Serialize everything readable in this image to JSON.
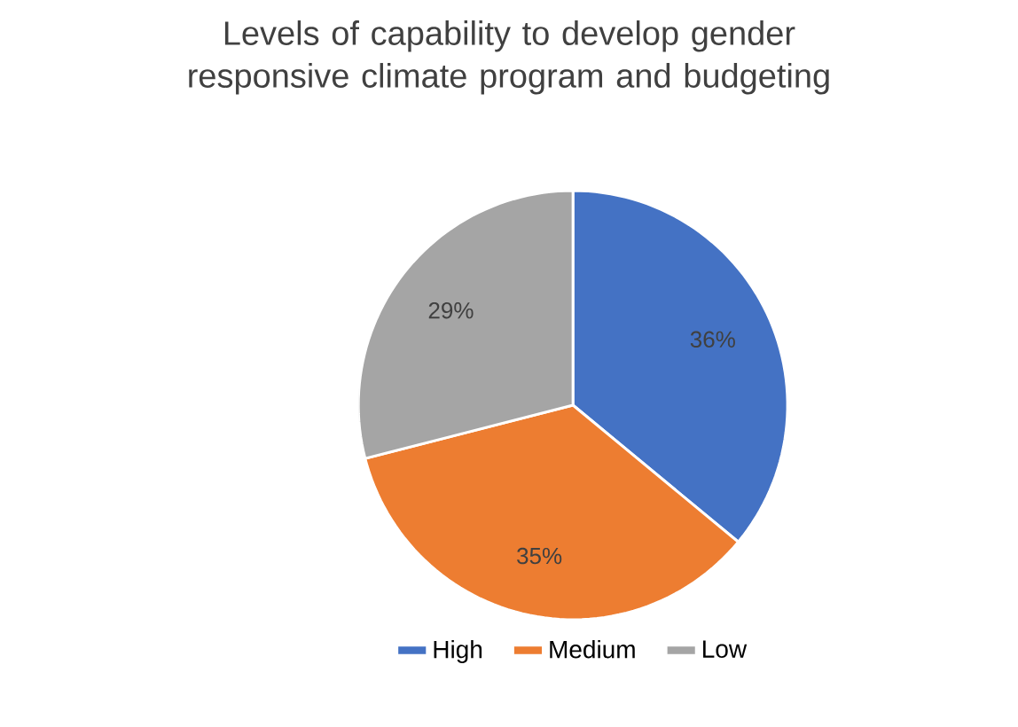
{
  "chart_data": {
    "type": "pie",
    "title": "Levels of capability to develop gender responsive climate program and budgeting",
    "categories": [
      "High",
      "Medium",
      "Low"
    ],
    "values": [
      36,
      35,
      29
    ],
    "value_labels": [
      "36%",
      "35%",
      "29%"
    ],
    "colors": [
      "#4472c4",
      "#ed7d31",
      "#a5a5a5"
    ],
    "legend": "bottom"
  }
}
